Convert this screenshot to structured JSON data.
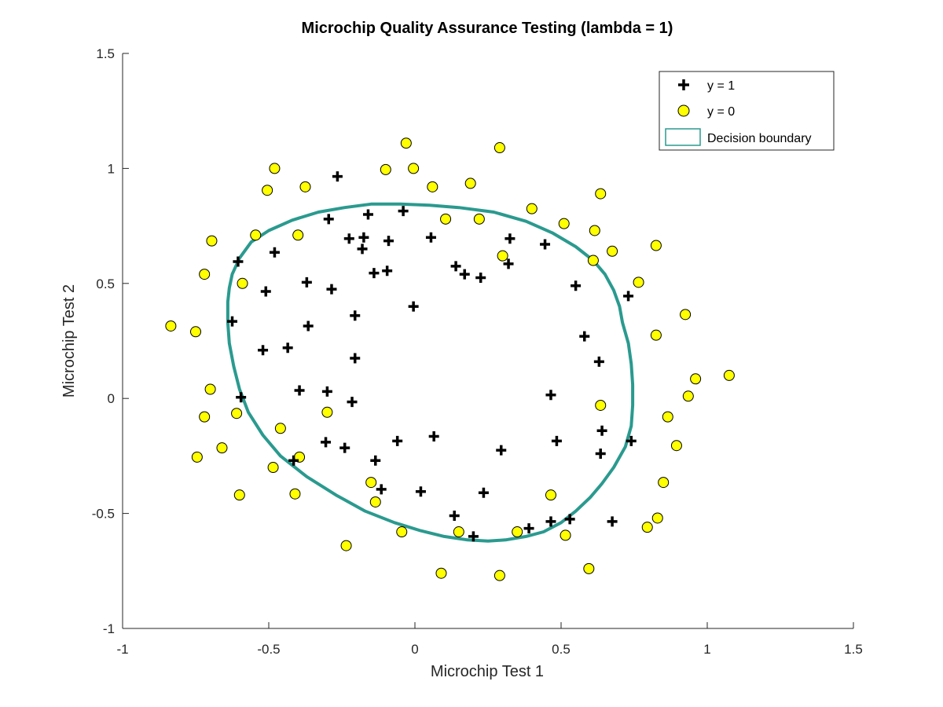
{
  "chart_data": {
    "type": "scatter",
    "title": "Microchip Quality Assurance Testing (lambda = 1)",
    "xlabel": "Microchip Test 1",
    "ylabel": "Microchip Test 2",
    "xlim": [
      -1,
      1.5
    ],
    "ylim": [
      -1,
      1.5
    ],
    "xticks": [
      -1,
      -0.5,
      0,
      0.5,
      1,
      1.5
    ],
    "yticks": [
      -1,
      -0.5,
      0,
      0.5,
      1,
      1.5
    ],
    "xtick_labels": [
      "-1",
      "-0.5",
      "0",
      "0.5",
      "1",
      "1.5"
    ],
    "ytick_labels": [
      "-1",
      "-0.5",
      "0",
      "0.5",
      "1",
      "1.5"
    ],
    "grid": false,
    "legend_position": "top-right",
    "colors": {
      "positive": "#000000",
      "negative_fill": "#ffff00",
      "negative_edge": "#000000",
      "boundary": "#2a9a8f"
    },
    "series": [
      {
        "name": "y = 1",
        "marker": "plus",
        "x": [
          -0.265,
          -0.16,
          -0.04,
          -0.295,
          -0.175,
          -0.225,
          -0.18,
          -0.09,
          0.055,
          -0.48,
          -0.605,
          -0.14,
          -0.095,
          0.14,
          0.17,
          0.225,
          0.325,
          0.32,
          0.445,
          -0.37,
          -0.285,
          -0.51,
          -0.625,
          -0.365,
          -0.205,
          -0.005,
          0.55,
          0.58,
          0.63,
          0.73,
          -0.52,
          -0.435,
          -0.205,
          -0.595,
          -0.395,
          -0.3,
          -0.215,
          0.465,
          -0.305,
          -0.24,
          -0.135,
          -0.06,
          0.065,
          0.295,
          0.485,
          0.64,
          0.635,
          0.74,
          -0.415,
          -0.115,
          0.02,
          0.235,
          0.135,
          0.2,
          0.39,
          0.465,
          0.53,
          0.675
        ],
        "y": [
          0.965,
          0.8,
          0.815,
          0.78,
          0.7,
          0.695,
          0.65,
          0.685,
          0.7,
          0.635,
          0.595,
          0.545,
          0.555,
          0.575,
          0.54,
          0.525,
          0.695,
          0.585,
          0.67,
          0.505,
          0.475,
          0.465,
          0.335,
          0.315,
          0.36,
          0.4,
          0.49,
          0.27,
          0.16,
          0.445,
          0.21,
          0.22,
          0.175,
          0.005,
          0.035,
          0.03,
          -0.015,
          0.015,
          -0.19,
          -0.215,
          -0.27,
          -0.185,
          -0.165,
          -0.225,
          -0.185,
          -0.14,
          -0.24,
          -0.185,
          -0.27,
          -0.395,
          -0.405,
          -0.41,
          -0.51,
          -0.6,
          -0.565,
          -0.535,
          -0.525,
          -0.535
        ]
      },
      {
        "name": "y = 0",
        "marker": "circle",
        "x": [
          -0.03,
          0.29,
          -0.48,
          -0.1,
          -0.005,
          -0.375,
          -0.505,
          0.06,
          0.19,
          0.635,
          0.4,
          0.22,
          0.51,
          0.105,
          0.615,
          0.675,
          -0.695,
          -0.545,
          -0.4,
          0.3,
          0.61,
          0.825,
          -0.72,
          -0.59,
          0.765,
          -0.835,
          -0.75,
          0.925,
          0.825,
          0.96,
          0.935,
          1.075,
          -0.7,
          -0.72,
          -0.61,
          0.635,
          -0.3,
          0.865,
          -0.46,
          -0.66,
          -0.745,
          -0.395,
          0.895,
          -0.485,
          -0.6,
          -0.41,
          -0.15,
          -0.135,
          0.85,
          0.465,
          -0.235,
          -0.045,
          0.15,
          0.35,
          0.515,
          0.795,
          0.83,
          0.09,
          0.29,
          0.595
        ],
        "y": [
          1.11,
          1.09,
          1.0,
          0.995,
          1.0,
          0.92,
          0.905,
          0.92,
          0.935,
          0.89,
          0.825,
          0.78,
          0.76,
          0.78,
          0.73,
          0.64,
          0.685,
          0.71,
          0.71,
          0.62,
          0.6,
          0.665,
          0.54,
          0.5,
          0.505,
          0.315,
          0.29,
          0.365,
          0.275,
          0.085,
          0.01,
          0.1,
          0.04,
          -0.08,
          -0.065,
          -0.03,
          -0.06,
          -0.08,
          -0.13,
          -0.215,
          -0.255,
          -0.255,
          -0.205,
          -0.3,
          -0.42,
          -0.415,
          -0.365,
          -0.45,
          -0.365,
          -0.42,
          -0.64,
          -0.58,
          -0.58,
          -0.58,
          -0.595,
          -0.56,
          -0.52,
          -0.76,
          -0.77,
          -0.74
        ]
      }
    ],
    "decision_boundary": {
      "name": "Decision boundary",
      "x": [
        -0.05,
        0.05,
        0.15,
        0.27,
        0.38,
        0.47,
        0.55,
        0.61,
        0.65,
        0.68,
        0.7,
        0.71,
        0.73,
        0.74,
        0.745,
        0.745,
        0.74,
        0.72,
        0.68,
        0.64,
        0.6,
        0.55,
        0.5,
        0.44,
        0.38,
        0.31,
        0.25,
        0.18,
        0.1,
        0.02,
        -0.07,
        -0.17,
        -0.27,
        -0.37,
        -0.46,
        -0.52,
        -0.57,
        -0.6,
        -0.62,
        -0.635,
        -0.64,
        -0.64,
        -0.635,
        -0.625,
        -0.6,
        -0.56,
        -0.5,
        -0.42,
        -0.33,
        -0.24,
        -0.15,
        -0.05
      ],
      "y": [
        0.845,
        0.84,
        0.83,
        0.81,
        0.77,
        0.72,
        0.66,
        0.6,
        0.54,
        0.47,
        0.4,
        0.33,
        0.24,
        0.15,
        0.06,
        -0.03,
        -0.12,
        -0.21,
        -0.3,
        -0.37,
        -0.43,
        -0.49,
        -0.54,
        -0.58,
        -0.6,
        -0.615,
        -0.62,
        -0.615,
        -0.6,
        -0.575,
        -0.54,
        -0.49,
        -0.42,
        -0.34,
        -0.25,
        -0.16,
        -0.06,
        0.04,
        0.14,
        0.24,
        0.33,
        0.42,
        0.48,
        0.54,
        0.61,
        0.68,
        0.73,
        0.775,
        0.81,
        0.83,
        0.845,
        0.845
      ]
    }
  }
}
